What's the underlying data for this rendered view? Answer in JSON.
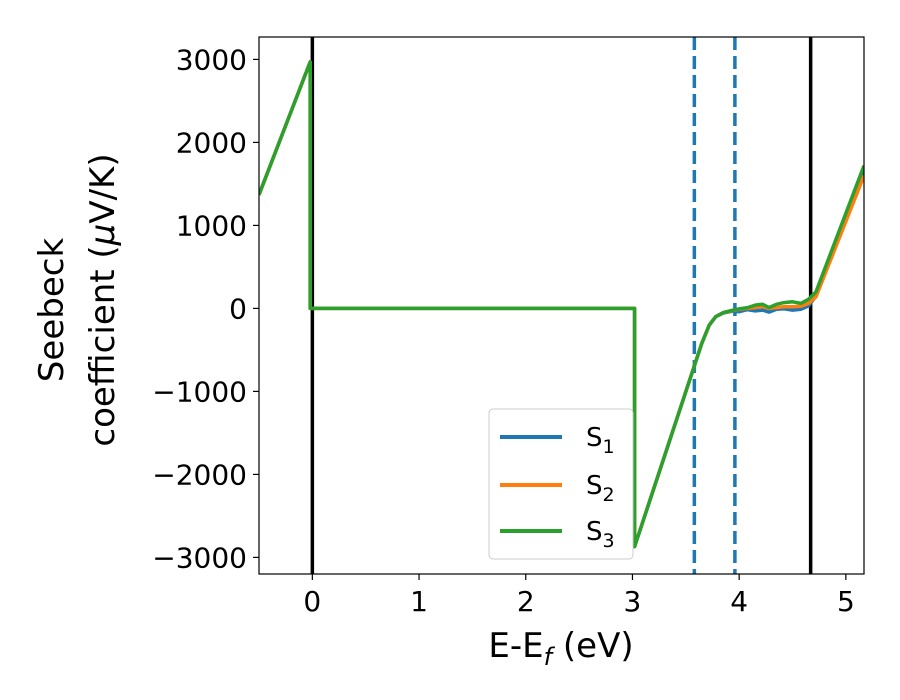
{
  "chart_data": {
    "type": "line",
    "xlabel": {
      "main": "E-E",
      "sub": "f",
      "unit": " (eV)"
    },
    "ylabel": {
      "line1": "Seebeck",
      "line2_prefix": "coefficient  (",
      "mu": "μ",
      "line2_suffix": "V/K)"
    },
    "xlim": [
      -0.5,
      5.17
    ],
    "ylim": [
      -3200,
      3270
    ],
    "xticks": [
      0,
      1,
      2,
      3,
      4,
      5
    ],
    "xtick_labels": [
      "0",
      "1",
      "2",
      "3",
      "4",
      "5"
    ],
    "yticks": [
      -3000,
      -2000,
      -1000,
      0,
      1000,
      2000,
      3000
    ],
    "ytick_labels": [
      "−3000",
      "−2000",
      "−1000",
      "0",
      "1000",
      "2000",
      "3000"
    ],
    "grid": false,
    "legend_position": "lower-center",
    "series": [
      {
        "name": "S",
        "subscript": "1",
        "color": "#1f77b4",
        "x": [
          -0.5,
          -0.02,
          -0.02,
          3.02,
          3.02,
          3.65,
          3.72,
          3.78,
          3.85,
          3.93,
          4.0,
          4.08,
          4.15,
          4.22,
          4.28,
          4.35,
          4.42,
          4.5,
          4.58,
          4.65,
          4.72,
          5.17
        ],
        "y": [
          1370,
          2970,
          0,
          0,
          -2870,
          -420,
          -200,
          -100,
          -55,
          -35,
          -40,
          -15,
          -30,
          -20,
          -45,
          -10,
          -5,
          -20,
          -10,
          30,
          150,
          1650
        ]
      },
      {
        "name": "S",
        "subscript": "2",
        "color": "#ff7f0e",
        "x": [
          -0.5,
          -0.02,
          -0.02,
          3.02,
          3.02,
          3.65,
          3.72,
          3.78,
          3.85,
          3.93,
          4.0,
          4.08,
          4.15,
          4.22,
          4.28,
          4.35,
          4.42,
          4.5,
          4.58,
          4.65,
          4.72,
          5.17
        ],
        "y": [
          1370,
          2970,
          0,
          0,
          -2870,
          -420,
          -200,
          -100,
          -50,
          -30,
          -10,
          0,
          10,
          20,
          0,
          10,
          20,
          20,
          25,
          60,
          140,
          1600
        ]
      },
      {
        "name": "S",
        "subscript": "3",
        "color": "#2ca02c",
        "x": [
          -0.5,
          -0.02,
          -0.02,
          3.02,
          3.02,
          3.65,
          3.72,
          3.78,
          3.85,
          3.93,
          4.0,
          4.08,
          4.15,
          4.22,
          4.28,
          4.35,
          4.42,
          4.5,
          4.58,
          4.65,
          4.72,
          5.17
        ],
        "y": [
          1370,
          2970,
          0,
          0,
          -2870,
          -420,
          -200,
          -100,
          -50,
          -25,
          -5,
          10,
          40,
          50,
          10,
          50,
          70,
          80,
          60,
          110,
          200,
          1720
        ]
      }
    ],
    "vlines": [
      {
        "x": 0.0,
        "style": "solid",
        "color": "#000000"
      },
      {
        "x": 4.67,
        "style": "solid",
        "color": "#000000"
      },
      {
        "x": 3.58,
        "style": "dashed",
        "color": "#1f77b4"
      },
      {
        "x": 3.96,
        "style": "dashed",
        "color": "#1f77b4"
      }
    ]
  }
}
